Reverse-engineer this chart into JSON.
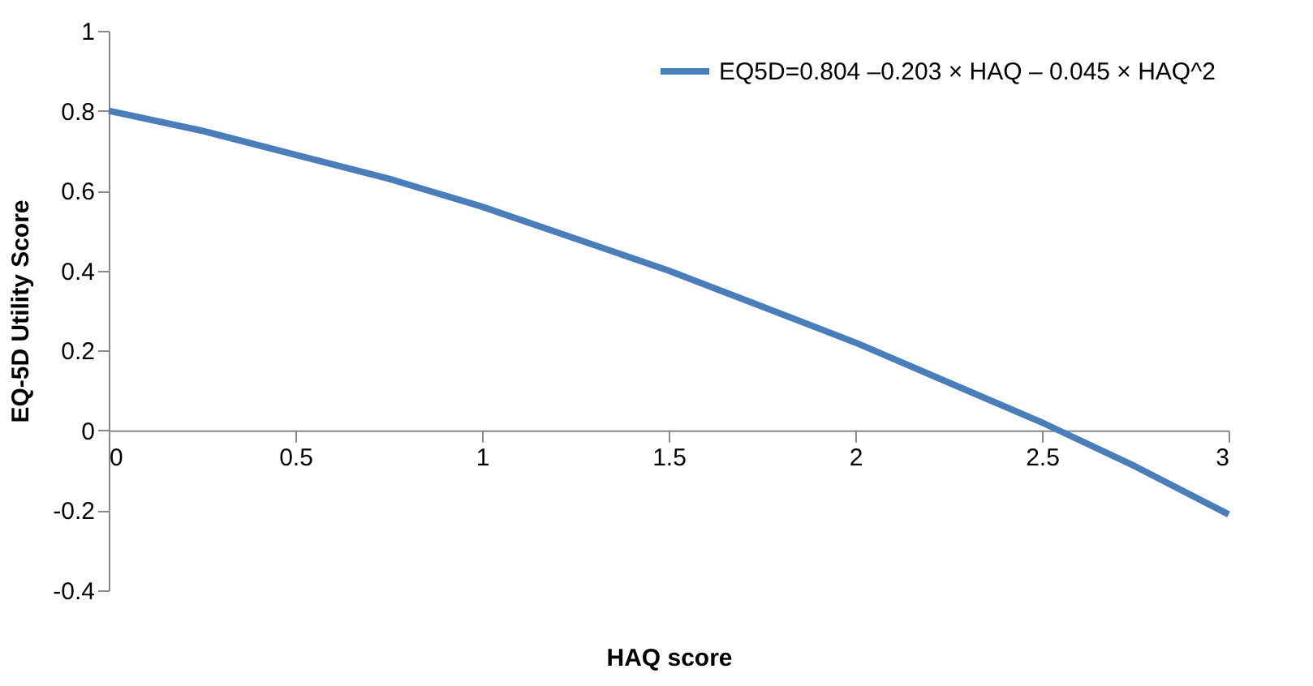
{
  "chart_data": {
    "type": "line",
    "xlabel": "HAQ score",
    "ylabel": "EQ-5D Utility Score",
    "x": [
      0,
      0.25,
      0.5,
      0.75,
      1,
      1.25,
      1.5,
      1.75,
      2,
      2.25,
      2.5,
      2.75,
      3
    ],
    "series": [
      {
        "name": "EQ5D=0.804 –0.203 × HAQ – 0.045 × HAQ^2",
        "color": "#4a7ebb",
        "values": [
          0.8,
          0.75,
          0.69,
          0.63,
          0.56,
          0.48,
          0.4,
          0.31,
          0.22,
          0.12,
          0.02,
          -0.09,
          -0.21
        ]
      }
    ],
    "xlim": [
      0,
      3
    ],
    "xticks": [
      0,
      0.5,
      1,
      1.5,
      2,
      2.5,
      3
    ],
    "ylim": [
      -0.4,
      1
    ],
    "yticks": [
      -0.4,
      -0.2,
      0,
      0.2,
      0.4,
      0.6,
      0.8,
      1
    ],
    "grid": false,
    "legend": "top right",
    "marker": "none",
    "line_style": "solid"
  }
}
